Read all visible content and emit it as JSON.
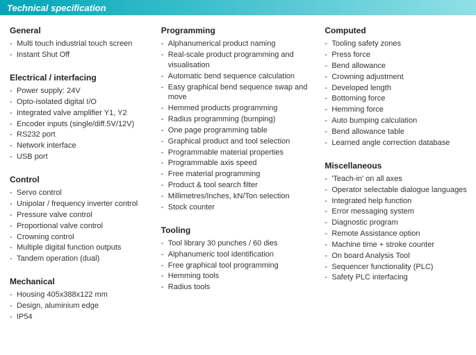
{
  "title": "Technical specification",
  "title_bar_gradient": [
    "#00a6b8",
    "#8fe0e6"
  ],
  "columns": [
    {
      "sections": [
        {
          "heading": "General",
          "items": [
            "Multi touch industrial touch screen",
            "Instant Shut Off"
          ]
        },
        {
          "heading": "Electrical / interfacing",
          "items": [
            "Power supply: 24V",
            "Opto-isolated digital I/O",
            "Integrated valve amplifier Y1, Y2",
            "Encoder inputs  (single/diff.5V/12V)",
            "RS232 port",
            "Network interface",
            "USB port"
          ]
        },
        {
          "heading": "Control",
          "items": [
            "Servo control",
            "Unipolar / frequency inverter control",
            "Pressure valve control",
            "Proportional valve control",
            "Crowning control",
            "Multiple digital function outputs",
            "Tandem operation (dual)"
          ]
        },
        {
          "heading": "Mechanical",
          "items": [
            "Housing 405x388x122 mm",
            "Design, aluminium edge",
            "IP54"
          ]
        }
      ]
    },
    {
      "sections": [
        {
          "heading": "Programming",
          "items": [
            "Alphanumerical product naming",
            "Real-scale product programming and visualisation",
            "Automatic bend sequence calculation",
            "Easy graphical bend sequence swap and move",
            "Hemmed products programming",
            "Radius programming (bumping)",
            "One page programming table",
            "Graphical product and tool selection",
            "Programmable material properties",
            "Programmable axis speed",
            "Free material programming",
            "Product & tool search filter",
            "Millimetres/Inches, kN/Ton selection",
            "Stock counter"
          ]
        },
        {
          "heading": "Tooling",
          "items": [
            "Tool library 30 punches / 60 dies",
            "Alphanumeric tool identification",
            "Free graphical tool programming",
            "Hemming tools",
            "Radius tools"
          ]
        }
      ]
    },
    {
      "sections": [
        {
          "heading": "Computed",
          "items": [
            "Tooling safety zones",
            "Press force",
            "Bend allowance",
            "Crowning adjustment",
            "Developed length",
            "Bottoming force",
            "Hemming force",
            "Auto bumping calculation",
            "Bend allowance table",
            "Learned angle correction database"
          ]
        },
        {
          "heading": "Miscellaneous",
          "items": [
            "'Teach-in' on all axes",
            "Operator selectable dialogue languages",
            "Integrated help function",
            "Error messaging system",
            "Diagnostic program",
            "Remote Assistance option",
            "Machine time + stroke counter",
            "On board Analysis Tool",
            "Sequencer functionality (PLC)",
            "Safety PLC interfacing"
          ]
        }
      ]
    }
  ]
}
